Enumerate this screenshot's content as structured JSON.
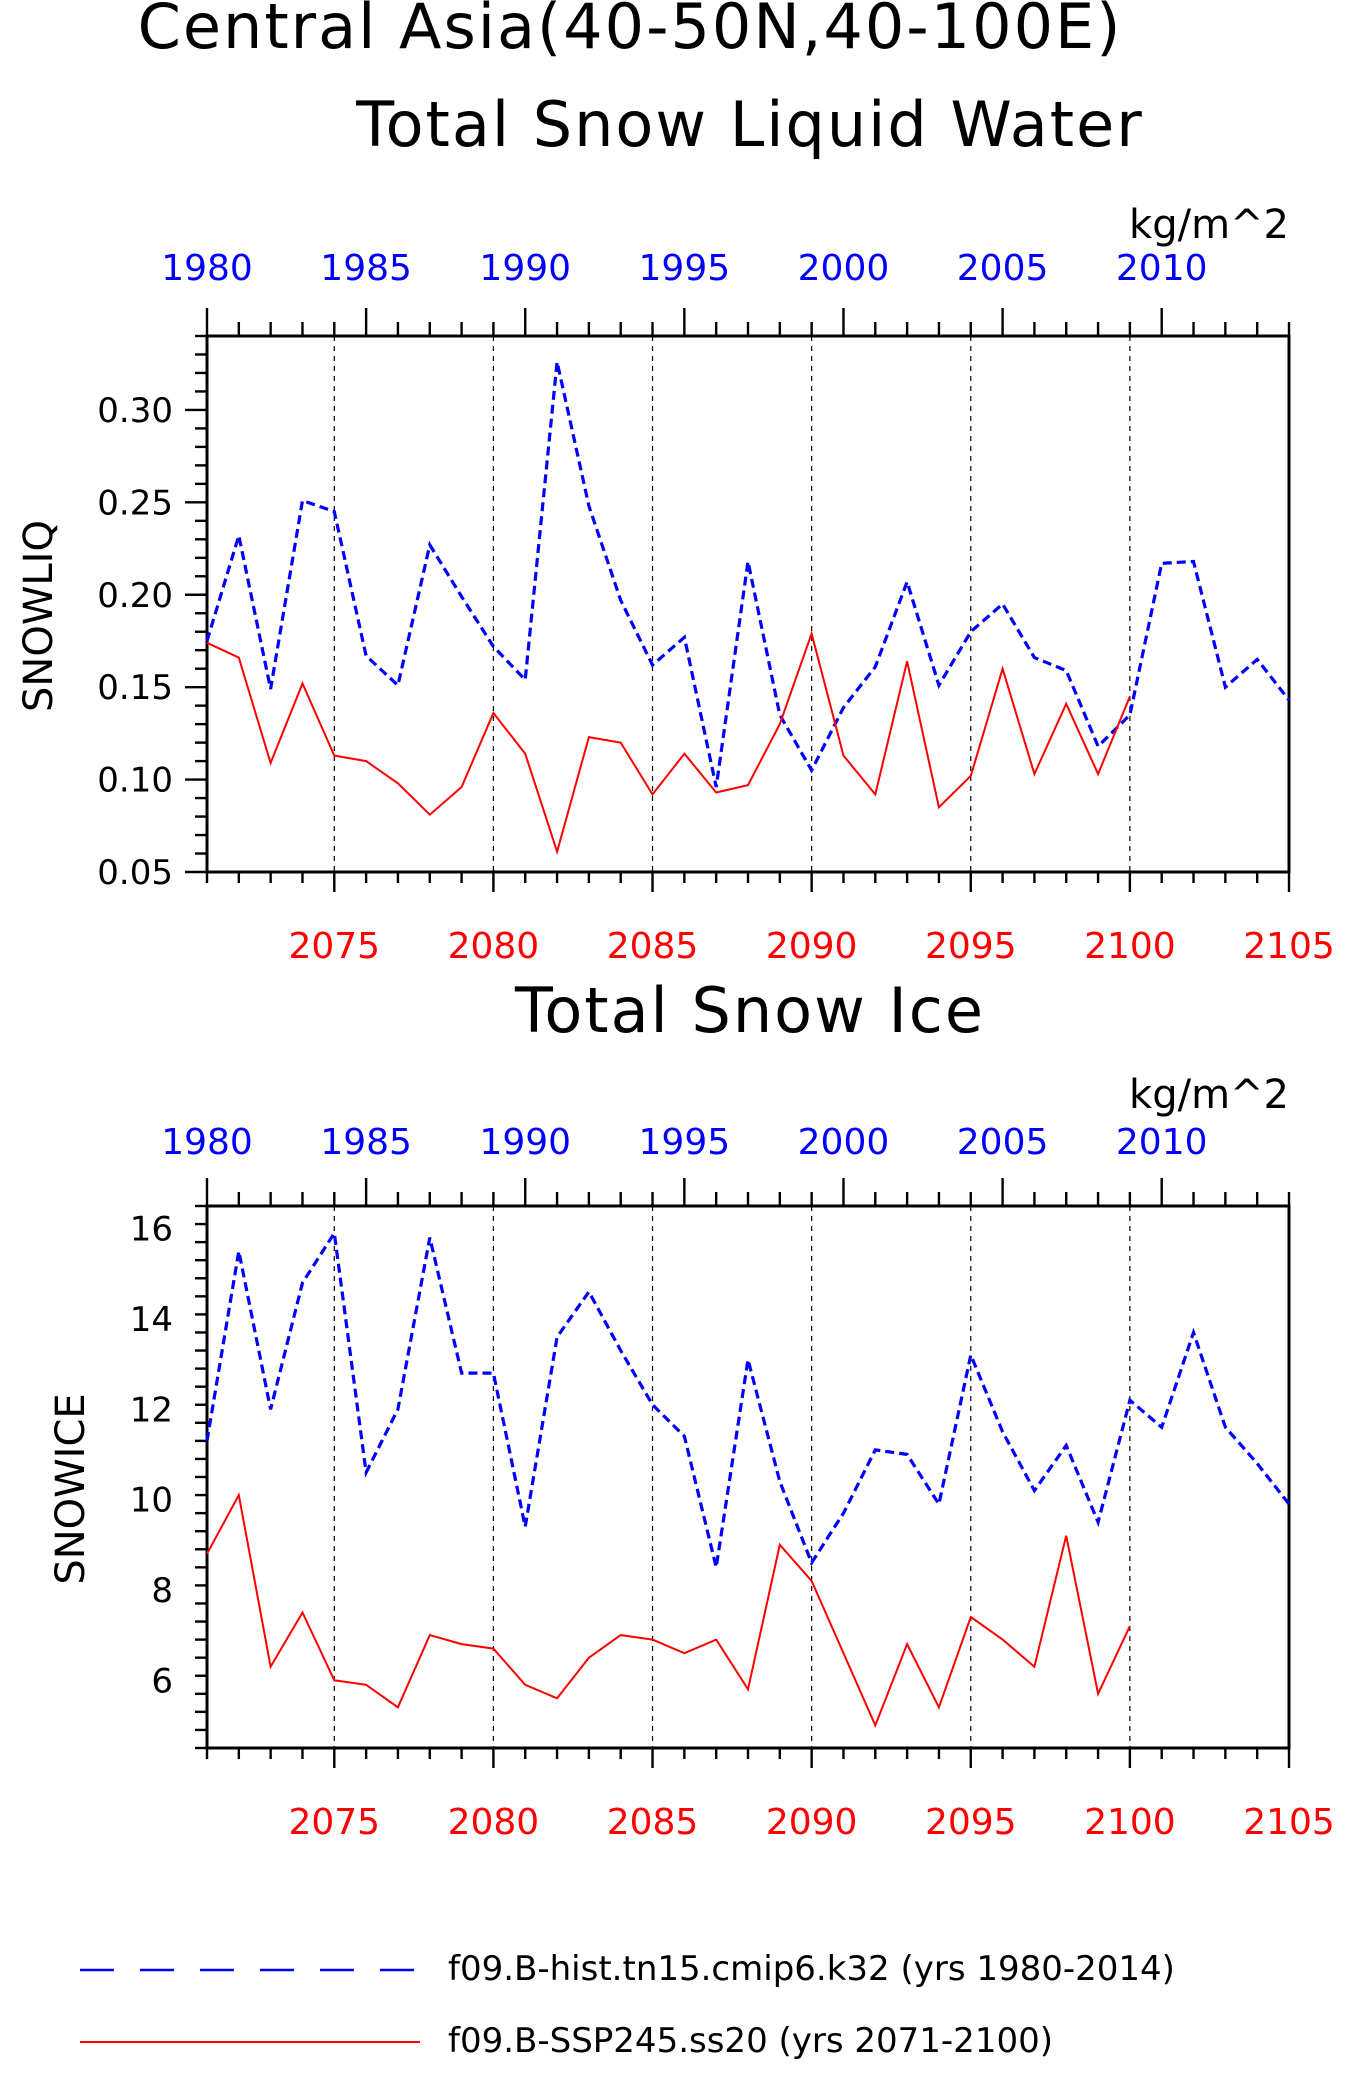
{
  "title": {
    "line1": "Central Asia(40-50N,40-100E)",
    "line2": "Total Snow Liquid Water"
  },
  "colors": {
    "hist": "#0000ff",
    "ssp": "#ff0000",
    "axis": "#000000"
  },
  "legend": [
    {
      "label": "f09.B-hist.tn15.cmip6.k32 (yrs 1980-2014)",
      "style": "dashed",
      "color": "#0000ff"
    },
    {
      "label": "f09.B-SSP245.ss20 (yrs 2071-2100)",
      "style": "solid",
      "color": "#ff0000"
    }
  ],
  "chart_data": [
    {
      "type": "line",
      "title": "Total Snow Liquid Water",
      "units": "kg/m^2",
      "ylabel": "SNOWLIQ",
      "ylim": [
        0.05,
        0.34
      ],
      "yticks": [
        "0.05",
        "0.10",
        "0.15",
        "0.20",
        "0.25",
        "0.30"
      ],
      "grid": "vertical dashed lines at bottom major ticks",
      "x_bottom": {
        "range": [
          2071,
          2105
        ],
        "ticks": [
          "2075",
          "2080",
          "2085",
          "2090",
          "2095",
          "2100",
          "2105"
        ]
      },
      "x_top": {
        "range": [
          1980,
          2014
        ],
        "ticks": [
          "1980",
          "1985",
          "1990",
          "1995",
          "2000",
          "2005",
          "2010"
        ]
      },
      "series": [
        {
          "name": "f09.B-hist.tn15.cmip6.k32 (yrs 1980-2014)",
          "axis": "top",
          "x": [
            1980,
            1981,
            1982,
            1983,
            1984,
            1985,
            1986,
            1987,
            1988,
            1989,
            1990,
            1991,
            1992,
            1993,
            1994,
            1995,
            1996,
            1997,
            1998,
            1999,
            2000,
            2001,
            2002,
            2003,
            2004,
            2005,
            2006,
            2007,
            2008,
            2009,
            2010,
            2011,
            2012,
            2013,
            2014
          ],
          "values": [
            0.175,
            0.232,
            0.149,
            0.251,
            0.245,
            0.167,
            0.151,
            0.227,
            0.199,
            0.172,
            0.154,
            0.326,
            0.248,
            0.197,
            0.162,
            0.177,
            0.096,
            0.218,
            0.135,
            0.105,
            0.139,
            0.161,
            0.207,
            0.151,
            0.18,
            0.195,
            0.166,
            0.159,
            0.118,
            0.135,
            0.217,
            0.218,
            0.15,
            0.165,
            0.143
          ]
        },
        {
          "name": "f09.B-SSP245.ss20 (yrs 2071-2100)",
          "axis": "bottom",
          "x": [
            2071,
            2072,
            2073,
            2074,
            2075,
            2076,
            2077,
            2078,
            2079,
            2080,
            2081,
            2082,
            2083,
            2084,
            2085,
            2086,
            2087,
            2088,
            2089,
            2090,
            2091,
            2092,
            2093,
            2094,
            2095,
            2096,
            2097,
            2098,
            2099,
            2100
          ],
          "values": [
            0.174,
            0.166,
            0.109,
            0.152,
            0.113,
            0.11,
            0.098,
            0.081,
            0.096,
            0.136,
            0.114,
            0.061,
            0.123,
            0.12,
            0.092,
            0.114,
            0.093,
            0.097,
            0.13,
            0.179,
            0.113,
            0.092,
            0.164,
            0.085,
            0.102,
            0.16,
            0.103,
            0.141,
            0.103,
            0.145
          ]
        }
      ]
    },
    {
      "type": "line",
      "title": "Total Snow Ice",
      "units": "kg/m^2",
      "ylabel": "SNOWICE",
      "ylim": [
        4.5,
        16.5
      ],
      "yticks": [
        "6",
        "8",
        "10",
        "12",
        "14",
        "16"
      ],
      "grid": "vertical dashed lines at bottom major ticks",
      "x_bottom": {
        "range": [
          2071,
          2105
        ],
        "ticks": [
          "2075",
          "2080",
          "2085",
          "2090",
          "2095",
          "2100",
          "2105"
        ]
      },
      "x_top": {
        "range": [
          1980,
          2014
        ],
        "ticks": [
          "1980",
          "1985",
          "1990",
          "1995",
          "2000",
          "2005",
          "2010"
        ]
      },
      "series": [
        {
          "name": "f09.B-hist.tn15.cmip6.k32 (yrs 1980-2014)",
          "axis": "top",
          "x": [
            1980,
            1981,
            1982,
            1983,
            1984,
            1985,
            1986,
            1987,
            1988,
            1989,
            1990,
            1991,
            1992,
            1993,
            1994,
            1995,
            1996,
            1997,
            1998,
            1999,
            2000,
            2001,
            2002,
            2003,
            2004,
            2005,
            2006,
            2007,
            2008,
            2009,
            2010,
            2011,
            2012,
            2013,
            2014
          ],
          "values": [
            11.3,
            15.5,
            12.0,
            14.8,
            15.9,
            10.6,
            12.0,
            15.8,
            12.8,
            12.8,
            9.4,
            13.6,
            14.6,
            13.3,
            12.1,
            11.4,
            8.5,
            13.1,
            10.4,
            8.6,
            9.7,
            11.1,
            11.0,
            9.9,
            13.2,
            11.5,
            10.2,
            11.2,
            9.5,
            12.2,
            11.6,
            13.7,
            11.6,
            10.8,
            9.9
          ]
        },
        {
          "name": "f09.B-SSP245.ss20 (yrs 2071-2100)",
          "axis": "bottom",
          "x": [
            2071,
            2072,
            2073,
            2074,
            2075,
            2076,
            2077,
            2078,
            2079,
            2080,
            2081,
            2082,
            2083,
            2084,
            2085,
            2086,
            2087,
            2088,
            2089,
            2090,
            2091,
            2092,
            2093,
            2094,
            2095,
            2096,
            2097,
            2098,
            2099,
            2100
          ],
          "values": [
            8.8,
            10.1,
            6.3,
            7.5,
            6.0,
            5.9,
            5.4,
            7.0,
            6.8,
            6.7,
            5.9,
            5.6,
            6.5,
            7.0,
            6.9,
            6.6,
            6.9,
            5.8,
            9.0,
            8.2,
            6.6,
            5.0,
            6.8,
            5.4,
            7.4,
            6.9,
            6.3,
            9.2,
            5.7,
            7.2
          ]
        }
      ]
    }
  ]
}
